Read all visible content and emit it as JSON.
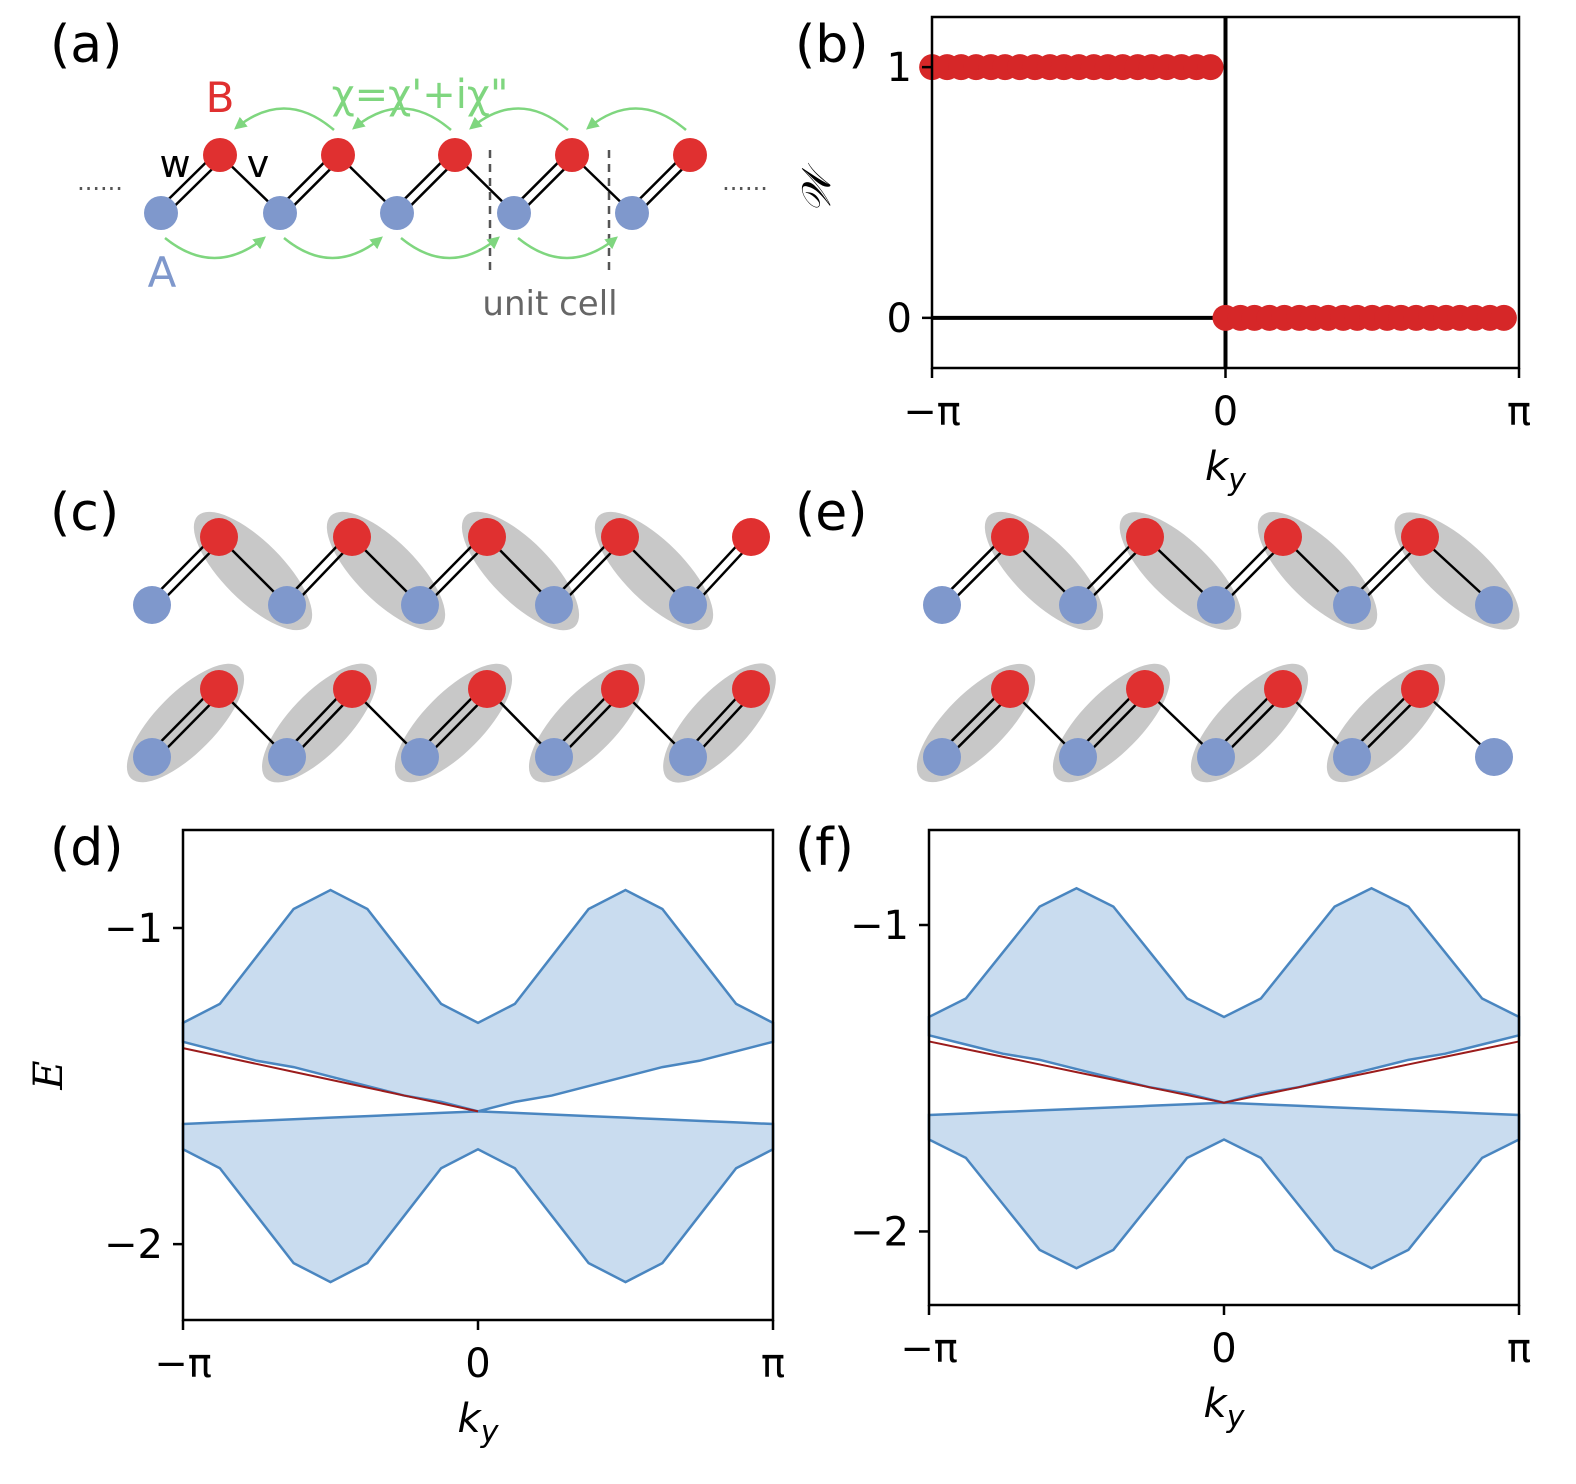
{
  "figure": {
    "a": {
      "label": "(a)",
      "site_b": "B",
      "site_a": "A",
      "hopping_w": "w",
      "hopping_v": "v",
      "nnn_hopping": "χ=χ'+iχ\"",
      "unit_cell": "unit cell",
      "ellipsis_left": "......",
      "ellipsis_right": "......"
    },
    "c": {
      "label": "(c)"
    },
    "e": {
      "label": "(e)"
    }
  },
  "chart_data": [
    {
      "type": "scatter",
      "panel_label": "(b)",
      "color": "#d62728",
      "x": [
        -3.14,
        -2.98,
        -2.83,
        -2.67,
        -2.51,
        -2.36,
        -2.2,
        -2.04,
        -1.88,
        -1.73,
        -1.57,
        -1.41,
        -1.26,
        -1.1,
        -0.94,
        -0.79,
        -0.63,
        -0.47,
        -0.31,
        -0.16,
        0,
        0.16,
        0.31,
        0.47,
        0.63,
        0.79,
        0.94,
        1.1,
        1.26,
        1.41,
        1.57,
        1.73,
        1.88,
        2.04,
        2.2,
        2.36,
        2.51,
        2.67,
        2.83,
        2.98
      ],
      "y": [
        1,
        1,
        1,
        1,
        1,
        1,
        1,
        1,
        1,
        1,
        1,
        1,
        1,
        1,
        1,
        1,
        1,
        1,
        1,
        1,
        0,
        0,
        0,
        0,
        0,
        0,
        0,
        0,
        0,
        0,
        0,
        0,
        0,
        0,
        0,
        0,
        0,
        0,
        0,
        0
      ],
      "xlim": [
        -3.1416,
        3.1416
      ],
      "ylim": [
        -0.2,
        1.2
      ],
      "xticks": [
        {
          "value": -3.1416,
          "label": "−π"
        },
        0,
        {
          "value": 3.1416,
          "label": "π"
        }
      ],
      "yticks": [
        0,
        1
      ],
      "xlabel": {
        "base": "k",
        "sub": "y"
      },
      "ylabel": "𝒲"
    },
    {
      "type": "band",
      "panel_label": "(d)",
      "x": [
        -3.1416,
        -2.7489,
        -2.3562,
        -1.9635,
        -1.5708,
        -1.1781,
        -0.7854,
        -0.3927,
        0,
        0.3927,
        0.7854,
        1.1781,
        1.5708,
        1.9635,
        2.3562,
        2.7489,
        3.1416
      ],
      "bands": [
        {
          "color": "#4a86c0",
          "top": [
            -1.3,
            -1.24,
            -1.09,
            -0.94,
            -0.88,
            -0.94,
            -1.09,
            -1.24,
            -1.3,
            -1.24,
            -1.09,
            -0.94,
            -0.88,
            -0.94,
            -1.09,
            -1.24,
            -1.3
          ],
          "bottom": [
            -1.36,
            -1.39,
            -1.42,
            -1.44,
            -1.47,
            -1.5,
            -1.53,
            -1.55,
            -1.58,
            -1.55,
            -1.53,
            -1.5,
            -1.47,
            -1.44,
            -1.42,
            -1.39,
            -1.36
          ]
        },
        {
          "color": "#4a86c0",
          "top": [
            -1.62,
            -1.615,
            -1.61,
            -1.605,
            -1.6,
            -1.595,
            -1.59,
            -1.585,
            -1.58,
            -1.585,
            -1.59,
            -1.595,
            -1.6,
            -1.605,
            -1.61,
            -1.615,
            -1.62
          ],
          "bottom": [
            -1.7,
            -1.76,
            -1.91,
            -2.06,
            -2.12,
            -2.06,
            -1.91,
            -1.76,
            -1.7,
            -1.76,
            -1.91,
            -2.06,
            -2.12,
            -2.06,
            -1.91,
            -1.76,
            -1.7
          ]
        }
      ],
      "edge_state": {
        "color": "#9b1c1c",
        "values": [
          -1.38,
          -1.405,
          -1.43,
          -1.455,
          -1.48,
          -1.505,
          -1.53,
          -1.555,
          -1.58,
          null,
          null,
          null,
          null,
          null,
          null,
          null,
          null
        ]
      },
      "xlim": [
        -3.1416,
        3.1416
      ],
      "ylim": [
        -2.24,
        -0.69
      ],
      "xticks": [
        {
          "value": -3.1416,
          "label": "−π"
        },
        0,
        {
          "value": 3.1416,
          "label": "π"
        }
      ],
      "yticks": [
        {
          "value": -1,
          "label": "−1"
        },
        {
          "value": -2,
          "label": "−2"
        }
      ],
      "xlabel": {
        "base": "k",
        "sub": "y"
      },
      "ylabel": "E"
    },
    {
      "type": "band",
      "panel_label": "(f)",
      "x": [
        -3.1416,
        -2.7489,
        -2.3562,
        -1.9635,
        -1.5708,
        -1.1781,
        -0.7854,
        -0.3927,
        0,
        0.3927,
        0.7854,
        1.1781,
        1.5708,
        1.9635,
        2.3562,
        2.7489,
        3.1416
      ],
      "bands": [
        {
          "color": "#4a86c0",
          "top": [
            -1.3,
            -1.24,
            -1.09,
            -0.94,
            -0.88,
            -0.94,
            -1.09,
            -1.24,
            -1.3,
            -1.24,
            -1.09,
            -0.94,
            -0.88,
            -0.94,
            -1.09,
            -1.24,
            -1.3
          ],
          "bottom": [
            -1.36,
            -1.39,
            -1.42,
            -1.44,
            -1.47,
            -1.5,
            -1.53,
            -1.55,
            -1.58,
            -1.55,
            -1.53,
            -1.5,
            -1.47,
            -1.44,
            -1.42,
            -1.39,
            -1.36
          ]
        },
        {
          "color": "#4a86c0",
          "top": [
            -1.62,
            -1.615,
            -1.61,
            -1.605,
            -1.6,
            -1.595,
            -1.59,
            -1.585,
            -1.58,
            -1.585,
            -1.59,
            -1.595,
            -1.6,
            -1.605,
            -1.61,
            -1.615,
            -1.62
          ],
          "bottom": [
            -1.7,
            -1.76,
            -1.91,
            -2.06,
            -2.12,
            -2.06,
            -1.91,
            -1.76,
            -1.7,
            -1.76,
            -1.91,
            -2.06,
            -2.12,
            -2.06,
            -1.91,
            -1.76,
            -1.7
          ]
        }
      ],
      "edge_state": {
        "color": "#9b1c1c",
        "values": [
          -1.38,
          -1.405,
          -1.43,
          -1.455,
          -1.48,
          -1.505,
          -1.53,
          -1.555,
          -1.58,
          -1.555,
          -1.53,
          -1.505,
          -1.48,
          -1.455,
          -1.43,
          -1.405,
          -1.38
        ]
      },
      "xlim": [
        -3.1416,
        3.1416
      ],
      "ylim": [
        -2.24,
        -0.69
      ],
      "xticks": [
        {
          "value": -3.1416,
          "label": "−π"
        },
        0,
        {
          "value": 3.1416,
          "label": "π"
        }
      ],
      "yticks": [
        {
          "value": -1,
          "label": "−1"
        },
        {
          "value": -2,
          "label": "−2"
        }
      ],
      "xlabel": {
        "base": "k",
        "sub": "y"
      }
    }
  ]
}
